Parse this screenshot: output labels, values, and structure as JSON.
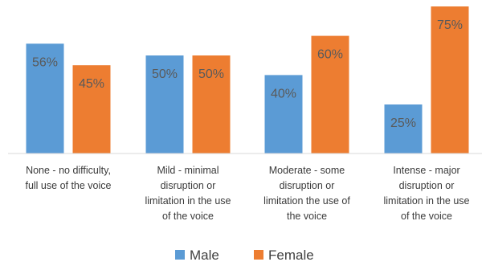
{
  "chart_data": {
    "type": "bar",
    "categories": [
      [
        "None - no difficulty,",
        "full use of the voice"
      ],
      [
        "Mild - minimal",
        "disruption or",
        "limitation in the use",
        "of the voice"
      ],
      [
        "Moderate - some",
        "disruption or",
        "limitation the use of",
        "the voice"
      ],
      [
        "Intense - major",
        "disruption or",
        "limitation in the use",
        "of the voice"
      ]
    ],
    "series": [
      {
        "name": "Male",
        "values": [
          56,
          50,
          40,
          25
        ],
        "labels": [
          "56%",
          "50%",
          "40%",
          "25%"
        ],
        "color": "#5b9bd5"
      },
      {
        "name": "Female",
        "values": [
          45,
          50,
          60,
          75
        ],
        "labels": [
          "45%",
          "50%",
          "60%",
          "75%"
        ],
        "color": "#ed7d31"
      }
    ],
    "ylim": [
      0,
      80
    ],
    "grid": false,
    "legend": "bottom",
    "title": "",
    "xlabel": "",
    "ylabel": ""
  }
}
